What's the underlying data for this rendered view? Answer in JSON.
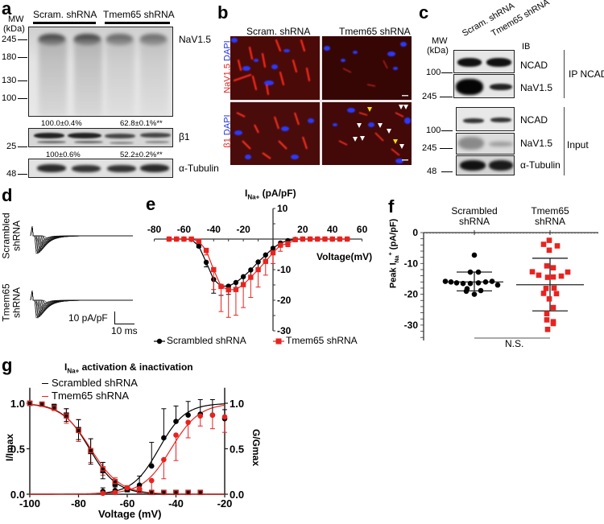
{
  "panels": {
    "a": {
      "label": "a",
      "mw_header": [
        "MW",
        "(kDa)"
      ],
      "lanes_groups": [
        "Scram. shRNA",
        "Tmem65 shRNA"
      ],
      "blots": [
        {
          "name": "NaV1.5",
          "markers": [
            "245",
            "180",
            "130",
            "100"
          ]
        },
        {
          "name": "β1",
          "markers": [
            "25"
          ],
          "quant": [
            "100.0±0.4%",
            "62.8±0.1%**"
          ]
        },
        {
          "name": "α-Tubulin",
          "markers": [
            "48"
          ],
          "quant": [
            "100±0.6%",
            "52.2±0.2%**"
          ]
        }
      ]
    },
    "b": {
      "label": "b",
      "columns": [
        "Scram. shRNA",
        "Tmem65 shRNA"
      ],
      "rows": [
        {
          "stain_red": "NaV1.5",
          "stain_blue": "DAPI"
        },
        {
          "stain_red": "β1",
          "stain_blue": "DAPI"
        }
      ],
      "colors": {
        "red": "#e0201c",
        "blue": "#2233dd",
        "bg": "#3a0806"
      }
    },
    "c": {
      "label": "c",
      "mw_header": [
        "MW",
        "(kDa)"
      ],
      "lanes": [
        "Scram. shRNA",
        "Tmem65 shRNA"
      ],
      "ib_label": "IB",
      "groups": [
        {
          "name": "IP NCAD",
          "blots": [
            {
              "name": "NCAD",
              "marker": "100"
            },
            {
              "name": "NaV1.5",
              "marker": "245"
            }
          ]
        },
        {
          "name": "Input",
          "blots": [
            {
              "name": "NCAD",
              "marker": "100"
            },
            {
              "name": "NaV1.5",
              "marker": "245"
            },
            {
              "name": "α-Tubulin",
              "marker": "48"
            }
          ]
        }
      ]
    },
    "d": {
      "label": "d",
      "rows": [
        [
          "Scrambled",
          "shRNA"
        ],
        [
          "Tmem65",
          "shRNA"
        ]
      ],
      "scalebar": {
        "y": "10 pA/pF",
        "x": "10 ms"
      }
    },
    "e": {
      "label": "e"
    },
    "f": {
      "label": "f"
    },
    "g": {
      "label": "g"
    }
  },
  "chart_data": [
    {
      "panel": "e",
      "type": "line",
      "title": "I_Na+ (pA/pF)",
      "xlabel": "Voltage(mV)",
      "ylabel": "I_Na+ (pA/pF)",
      "xlim": [
        -80,
        60
      ],
      "ylim": [
        -30,
        10
      ],
      "xticks": [
        "-80",
        "-60",
        "-40",
        "-20",
        "20",
        "40",
        "60"
      ],
      "yticks": [
        "10",
        "-10",
        "-20",
        "-30"
      ],
      "x": [
        -70,
        -65,
        -60,
        -55,
        -50,
        -45,
        -40,
        -35,
        -30,
        -25,
        -20,
        -15,
        -10,
        -5,
        0,
        5,
        10,
        15,
        20,
        25,
        30,
        35,
        40,
        45,
        50
      ],
      "series": [
        {
          "name": "Scrambled shRNA",
          "color": "#000000",
          "marker": "circle",
          "values": [
            0,
            0,
            0,
            -0.1,
            -2.3,
            -7.6,
            -13.2,
            -15.4,
            -15.4,
            -14.2,
            -12.3,
            -10.1,
            -7.5,
            -5.2,
            -3.0,
            -1.3,
            -0.5,
            -0.1,
            0,
            0,
            0,
            0,
            0,
            0,
            0
          ],
          "errors": [
            0,
            0,
            0,
            0,
            0.5,
            1.5,
            4.5,
            3.0,
            2.7,
            2.5,
            2.5,
            2.5,
            2.2,
            2.0,
            1.6,
            1.0,
            0.4,
            0,
            0,
            0,
            0,
            0,
            0,
            0,
            0
          ]
        },
        {
          "name": "Tmem65 shRNA",
          "color": "#e8231f",
          "marker": "square",
          "values": [
            0,
            0,
            0,
            0,
            -0.7,
            -3.7,
            -10.0,
            -15.5,
            -16.6,
            -16.5,
            -14.9,
            -12.5,
            -10.0,
            -7.3,
            -4.5,
            -2.0,
            -1.5,
            -0.2,
            0,
            0,
            0,
            0,
            0,
            0,
            0
          ],
          "errors": [
            0,
            0,
            0,
            0,
            0.4,
            1.5,
            6.5,
            8.2,
            9.0,
            8.4,
            7.5,
            6.6,
            5.7,
            4.5,
            3.5,
            2.0,
            1.0,
            0.3,
            0,
            0,
            0,
            0,
            0,
            0,
            0
          ]
        }
      ],
      "legend": [
        "Scrambled shRNA",
        "Tmem65 shRNA"
      ],
      "legend_position": "bottom"
    },
    {
      "panel": "f",
      "type": "scatter",
      "ylabel": "Peak I_Na+ (pA/pF)",
      "categories": [
        "Scrambled shRNA",
        "Tmem65 shRNA"
      ],
      "ylim": [
        -35,
        0
      ],
      "yticks": [
        "0",
        "-10",
        "-20",
        "-30"
      ],
      "annotation": "N.S.",
      "series": [
        {
          "name": "Scrambled shRNA",
          "color": "#000000",
          "marker": "circle",
          "values": [
            -7.3,
            -12.8,
            -12.8,
            -15.8,
            -16.0,
            -16.3,
            -16.5,
            -16.5,
            -16.3,
            -16.0,
            -15.8,
            -17.0,
            -18.2,
            -18.8,
            -19.0,
            -20.0
          ],
          "mean": -16.0,
          "sd_upper": -12.8,
          "sd_lower": -18.9
        },
        {
          "name": "Tmem65 shRNA",
          "color": "#e8231f",
          "marker": "square",
          "values": [
            -2.5,
            -3.8,
            -4.3,
            -5.7,
            -10.8,
            -11.4,
            -12.7,
            -12.8,
            -13.8,
            -14.1,
            -14.5,
            -14.4,
            -18.1,
            -18.0,
            -19.7,
            -19.8,
            -21.5,
            -24.3,
            -26.3,
            -28.3,
            -28.9,
            -29.5,
            -31.4
          ],
          "mean": -16.9,
          "sd_upper": -8.3,
          "sd_lower": -25.4
        }
      ]
    },
    {
      "panel": "g",
      "type": "line",
      "title": "I_Na+ activation & inactivation",
      "xlabel": "Voltage (mV)",
      "ylabel": "I/Imax",
      "ylabel_right": "G/Gmax",
      "xlim": [
        -100,
        -20
      ],
      "ylim": [
        0,
        1.15
      ],
      "xticks": [
        "-100",
        "-80",
        "-60",
        "-40",
        "-20"
      ],
      "yticks": [
        "0.0",
        "0.5",
        "1.0"
      ],
      "legend": [
        "Scrambled shRNA",
        "Tmem65 shRNA"
      ],
      "legend_position": "upper left",
      "series": [
        {
          "name": "Scrambled shRNA inactivation",
          "color": "#000000",
          "marker": "square",
          "x": [
            -100,
            -95,
            -90,
            -85,
            -80,
            -75,
            -70,
            -65,
            -60,
            -55,
            -50,
            -45,
            -40,
            -35,
            -30
          ],
          "values": [
            1.0,
            0.99,
            0.96,
            0.87,
            0.71,
            0.47,
            0.26,
            0.12,
            0.05,
            0.04,
            0.02,
            0.02,
            0.02,
            0.02,
            0.02
          ],
          "errors": [
            0,
            0.01,
            0.03,
            0.07,
            0.11,
            0.14,
            0.09,
            0.04,
            0.02,
            0.01,
            0,
            0,
            0,
            0,
            0
          ]
        },
        {
          "name": "Tmem65 shRNA inactivation",
          "color": "#e8231f",
          "marker": "square",
          "x": [
            -100,
            -95,
            -90,
            -85,
            -80,
            -75,
            -70,
            -65,
            -60,
            -55,
            -50,
            -45,
            -40,
            -35,
            -30
          ],
          "values": [
            1.0,
            0.99,
            0.95,
            0.86,
            0.7,
            0.48,
            0.28,
            0.14,
            0.07,
            0.04,
            0.02,
            0.02,
            0.02,
            0.02,
            0.02
          ],
          "errors": [
            0,
            0.01,
            0.03,
            0.08,
            0.12,
            0.13,
            0.07,
            0.04,
            0.02,
            0.01,
            0,
            0,
            0,
            0,
            0
          ]
        },
        {
          "name": "Scrambled shRNA activation",
          "color": "#000000",
          "marker": "circle",
          "x": [
            -70,
            -65,
            -60,
            -55,
            -50,
            -45,
            -40,
            -35,
            -30,
            -25,
            -20
          ],
          "values": [
            0.03,
            0.04,
            0.05,
            0.1,
            0.31,
            0.62,
            0.8,
            0.87,
            0.88,
            0.87,
            0.83
          ],
          "errors": [
            0.04,
            0.05,
            0.02,
            0.1,
            0.26,
            0.32,
            0.17,
            0.15,
            0.16,
            0.17,
            0.1
          ]
        },
        {
          "name": "Tmem65 shRNA activation",
          "color": "#e8231f",
          "marker": "circle",
          "x": [
            -70,
            -65,
            -60,
            -55,
            -50,
            -45,
            -40,
            -35,
            -30,
            -25,
            -20
          ],
          "values": [
            0.01,
            0.02,
            0.07,
            0.06,
            0.15,
            0.38,
            0.65,
            0.79,
            0.86,
            0.87,
            0.85
          ],
          "errors": [
            0,
            0.01,
            0.02,
            0.02,
            0.14,
            0.21,
            0.28,
            0.17,
            0.11,
            0.15,
            0.17
          ]
        }
      ]
    }
  ]
}
